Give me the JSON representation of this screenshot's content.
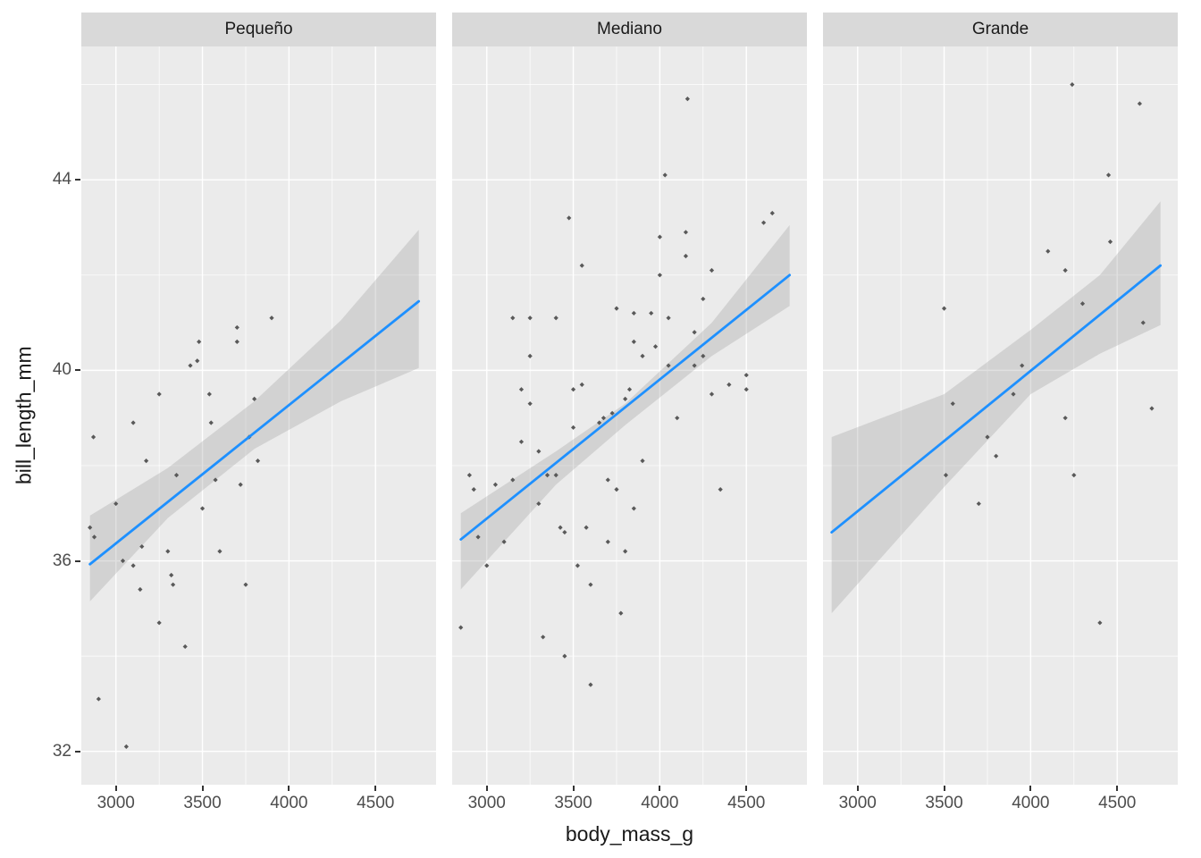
{
  "chart_data": {
    "type": "scatter",
    "title": "",
    "xlabel": "body_mass_g",
    "ylabel": "bill_length_mm",
    "legend": "none",
    "grid": true,
    "x_domain": [
      2800,
      4850
    ],
    "y_domain": [
      31.3,
      46.8
    ],
    "x_ticks": [
      3000,
      3500,
      4000,
      4500
    ],
    "x_minor_ticks": [
      3250,
      3750,
      4250
    ],
    "y_ticks": [
      32,
      36,
      40,
      44
    ],
    "y_minor_ticks": [
      34,
      38,
      42,
      46
    ],
    "style": {
      "panel_bg": "#ebebeb",
      "grid_color": "#ffffff",
      "strip_bg": "#d9d9d9",
      "point_color": "#595959",
      "line_color": "#1e90ff",
      "ribbon_color": "#9e9e9e",
      "ribbon_opacity": 0.32,
      "tick_text_color": "#4d4d4d",
      "axis_title_color": "#1a1a1a"
    },
    "facets": [
      {
        "label": "Pequeño",
        "smooth": {
          "x": [
            2850,
            4750
          ],
          "y": [
            35.93,
            41.45
          ]
        },
        "ribbon": {
          "x": [
            2850,
            3300,
            3800,
            4300,
            4750
          ],
          "upper": [
            36.95,
            37.95,
            39.35,
            41.05,
            42.95
          ],
          "lower": [
            35.15,
            36.9,
            38.35,
            39.35,
            40.05
          ]
        },
        "points": [
          [
            2870,
            38.6
          ],
          [
            2850,
            36.7
          ],
          [
            2875,
            36.5
          ],
          [
            2900,
            33.1
          ],
          [
            3000,
            37.2
          ],
          [
            3040,
            36.0
          ],
          [
            3060,
            32.1
          ],
          [
            3100,
            38.9
          ],
          [
            3100,
            35.9
          ],
          [
            3140,
            35.4
          ],
          [
            3150,
            36.3
          ],
          [
            3175,
            38.1
          ],
          [
            3250,
            39.5
          ],
          [
            3250,
            34.7
          ],
          [
            3300,
            36.2
          ],
          [
            3320,
            35.7
          ],
          [
            3330,
            35.5
          ],
          [
            3350,
            37.8
          ],
          [
            3400,
            34.2
          ],
          [
            3430,
            40.1
          ],
          [
            3470,
            40.2
          ],
          [
            3480,
            40.6
          ],
          [
            3500,
            37.1
          ],
          [
            3540,
            39.5
          ],
          [
            3550,
            38.9
          ],
          [
            3575,
            37.7
          ],
          [
            3600,
            36.2
          ],
          [
            3700,
            40.9
          ],
          [
            3700,
            40.6
          ],
          [
            3720,
            37.6
          ],
          [
            3750,
            35.5
          ],
          [
            3770,
            38.6
          ],
          [
            3800,
            39.4
          ],
          [
            3820,
            38.1
          ],
          [
            3900,
            41.1
          ]
        ]
      },
      {
        "label": "Mediano",
        "smooth": {
          "x": [
            2850,
            4750
          ],
          "y": [
            36.45,
            42.0
          ]
        },
        "ribbon": {
          "x": [
            2850,
            3400,
            3800,
            4300,
            4750
          ],
          "upper": [
            37.0,
            38.3,
            39.3,
            41.0,
            43.05
          ],
          "lower": [
            35.4,
            37.6,
            38.85,
            40.3,
            41.35
          ]
        },
        "points": [
          [
            2850,
            34.6
          ],
          [
            2900,
            37.8
          ],
          [
            2925,
            37.5
          ],
          [
            2950,
            36.5
          ],
          [
            3000,
            35.9
          ],
          [
            3050,
            37.6
          ],
          [
            3100,
            36.4
          ],
          [
            3150,
            37.7
          ],
          [
            3150,
            41.1
          ],
          [
            3200,
            39.6
          ],
          [
            3200,
            38.5
          ],
          [
            3250,
            41.1
          ],
          [
            3250,
            40.3
          ],
          [
            3250,
            39.3
          ],
          [
            3300,
            38.3
          ],
          [
            3300,
            37.2
          ],
          [
            3325,
            34.4
          ],
          [
            3350,
            37.8
          ],
          [
            3400,
            41.1
          ],
          [
            3400,
            37.8
          ],
          [
            3425,
            36.7
          ],
          [
            3450,
            36.6
          ],
          [
            3450,
            34.0
          ],
          [
            3475,
            43.2
          ],
          [
            3500,
            39.6
          ],
          [
            3500,
            38.8
          ],
          [
            3525,
            35.9
          ],
          [
            3550,
            42.2
          ],
          [
            3550,
            39.7
          ],
          [
            3575,
            36.7
          ],
          [
            3600,
            35.5
          ],
          [
            3600,
            33.4
          ],
          [
            3650,
            38.9
          ],
          [
            3675,
            39.0
          ],
          [
            3700,
            37.7
          ],
          [
            3700,
            36.4
          ],
          [
            3725,
            39.1
          ],
          [
            3750,
            41.3
          ],
          [
            3750,
            37.5
          ],
          [
            3775,
            34.9
          ],
          [
            3800,
            39.4
          ],
          [
            3800,
            36.2
          ],
          [
            3825,
            39.6
          ],
          [
            3850,
            41.2
          ],
          [
            3850,
            40.6
          ],
          [
            3850,
            37.1
          ],
          [
            3900,
            40.3
          ],
          [
            3900,
            38.1
          ],
          [
            4030,
            44.1
          ],
          [
            3950,
            41.2
          ],
          [
            3975,
            40.5
          ],
          [
            4000,
            42.8
          ],
          [
            4000,
            42.0
          ],
          [
            4050,
            41.1
          ],
          [
            4050,
            40.1
          ],
          [
            4160,
            45.7
          ],
          [
            4100,
            39.0
          ],
          [
            4150,
            42.9
          ],
          [
            4150,
            42.4
          ],
          [
            4200,
            40.8
          ],
          [
            4200,
            40.1
          ],
          [
            4250,
            41.5
          ],
          [
            4250,
            40.3
          ],
          [
            4300,
            42.1
          ],
          [
            4300,
            39.5
          ],
          [
            4350,
            37.5
          ],
          [
            4400,
            39.7
          ],
          [
            4500,
            39.9
          ],
          [
            4500,
            39.6
          ],
          [
            4600,
            43.1
          ],
          [
            4650,
            43.3
          ]
        ]
      },
      {
        "label": "Grande",
        "smooth": {
          "x": [
            2850,
            4750
          ],
          "y": [
            36.6,
            42.2
          ]
        },
        "ribbon": {
          "x": [
            2850,
            3500,
            4000,
            4400,
            4750
          ],
          "upper": [
            38.6,
            39.5,
            40.85,
            42.0,
            43.55
          ],
          "lower": [
            34.9,
            37.55,
            39.5,
            40.35,
            40.95
          ]
        },
        "points": [
          [
            3500,
            41.3
          ],
          [
            3510,
            37.8
          ],
          [
            3550,
            39.3
          ],
          [
            3700,
            37.2
          ],
          [
            3750,
            38.6
          ],
          [
            3800,
            38.2
          ],
          [
            3900,
            39.5
          ],
          [
            3950,
            40.1
          ],
          [
            4100,
            42.5
          ],
          [
            4240,
            46.0
          ],
          [
            4200,
            42.1
          ],
          [
            4200,
            39.0
          ],
          [
            4250,
            37.8
          ],
          [
            4300,
            41.4
          ],
          [
            4450,
            44.1
          ],
          [
            4400,
            34.7
          ],
          [
            4460,
            42.7
          ],
          [
            4630,
            45.6
          ],
          [
            4650,
            41.0
          ],
          [
            4700,
            39.2
          ]
        ]
      }
    ]
  }
}
